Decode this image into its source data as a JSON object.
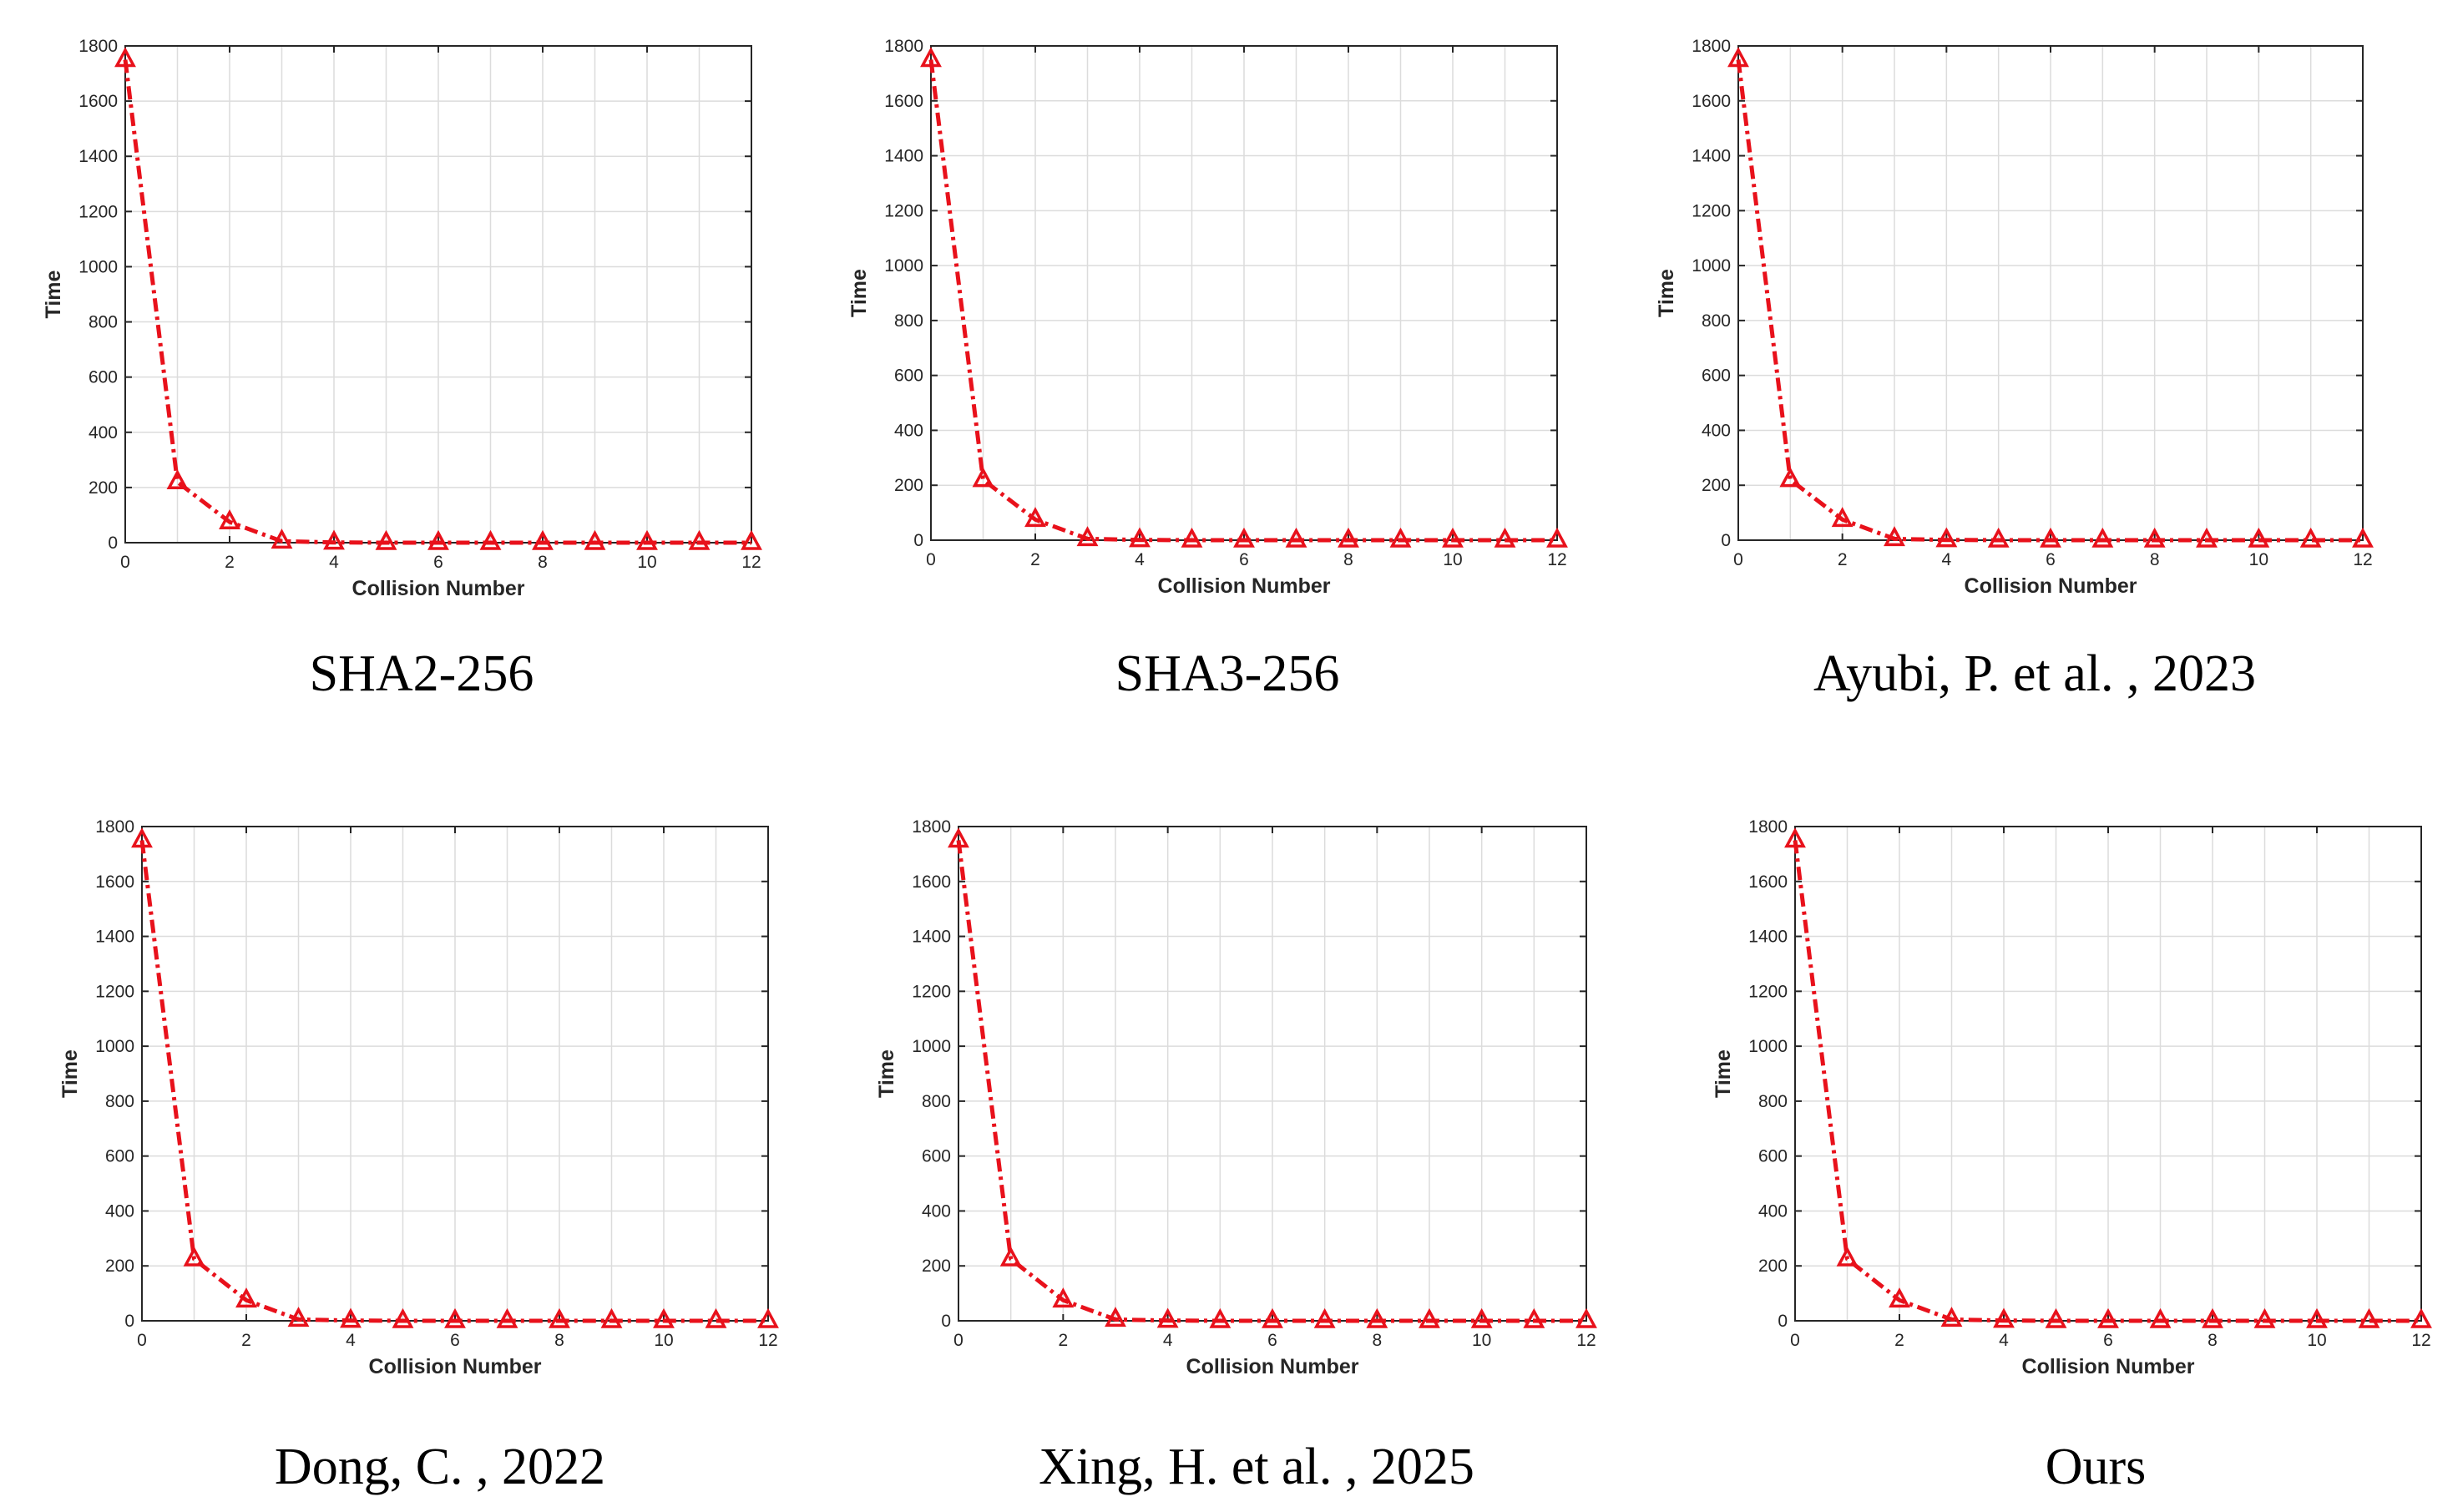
{
  "colors": {
    "series": "#e8111b",
    "grid": "#dcdcdc",
    "axis": "#262626",
    "background": "#ffffff"
  },
  "shared": {
    "x_tick_labels": [
      "0",
      "2",
      "4",
      "6",
      "8",
      "10",
      "12"
    ],
    "y_tick_labels": [
      "0",
      "200",
      "400",
      "600",
      "800",
      "1000",
      "1200",
      "1400",
      "1600",
      "1800"
    ]
  },
  "chart_data": [
    {
      "type": "line",
      "caption": "SHA2-256",
      "xlabel": "Collision Number",
      "ylabel": "Time",
      "xlim": [
        0,
        12
      ],
      "ylim": [
        0,
        1800
      ],
      "grid": true,
      "marker": "triangle-open",
      "line_style": "dash-dot",
      "x": [
        0,
        1,
        2,
        3,
        4,
        5,
        6,
        7,
        8,
        9,
        10,
        11,
        12
      ],
      "values": [
        1750,
        220,
        75,
        5,
        1,
        0,
        0,
        0,
        0,
        0,
        0,
        0,
        0
      ]
    },
    {
      "type": "line",
      "caption": "SHA3-256",
      "xlabel": "Collision Number",
      "ylabel": "Time",
      "xlim": [
        0,
        12
      ],
      "ylim": [
        0,
        1800
      ],
      "grid": true,
      "marker": "triangle-open",
      "line_style": "dash-dot",
      "x": [
        0,
        1,
        2,
        3,
        4,
        5,
        6,
        7,
        8,
        9,
        10,
        11,
        12
      ],
      "values": [
        1750,
        220,
        75,
        5,
        1,
        0,
        0,
        0,
        0,
        0,
        0,
        0,
        0
      ]
    },
    {
      "type": "line",
      "caption": "Ayubi, P. et al. , 2023",
      "xlabel": "Collision Number",
      "ylabel": "Time",
      "xlim": [
        0,
        12
      ],
      "ylim": [
        0,
        1800
      ],
      "grid": true,
      "marker": "triangle-open",
      "line_style": "dash-dot",
      "x": [
        0,
        1,
        2,
        3,
        4,
        5,
        6,
        7,
        8,
        9,
        10,
        11,
        12
      ],
      "values": [
        1750,
        220,
        75,
        5,
        1,
        0,
        0,
        0,
        0,
        0,
        0,
        0,
        0
      ]
    },
    {
      "type": "line",
      "caption": "Dong, C. , 2022",
      "xlabel": "Collision Number",
      "ylabel": "Time",
      "xlim": [
        0,
        12
      ],
      "ylim": [
        0,
        1800
      ],
      "grid": true,
      "marker": "triangle-open",
      "line_style": "dash-dot",
      "x": [
        0,
        1,
        2,
        3,
        4,
        5,
        6,
        7,
        8,
        9,
        10,
        11,
        12
      ],
      "values": [
        1750,
        225,
        75,
        5,
        1,
        0,
        0,
        0,
        0,
        0,
        0,
        0,
        0
      ]
    },
    {
      "type": "line",
      "caption": "Xing, H. et al. , 2025",
      "xlabel": "Collision Number",
      "ylabel": "Time",
      "xlim": [
        0,
        12
      ],
      "ylim": [
        0,
        1800
      ],
      "grid": true,
      "marker": "triangle-open",
      "line_style": "dash-dot",
      "x": [
        0,
        1,
        2,
        3,
        4,
        5,
        6,
        7,
        8,
        9,
        10,
        11,
        12
      ],
      "values": [
        1750,
        225,
        75,
        5,
        1,
        0,
        0,
        0,
        0,
        0,
        0,
        0,
        0
      ]
    },
    {
      "type": "line",
      "caption": "Ours",
      "xlabel": "Collision Number",
      "ylabel": "Time",
      "xlim": [
        0,
        12
      ],
      "ylim": [
        0,
        1800
      ],
      "grid": true,
      "marker": "triangle-open",
      "line_style": "dash-dot",
      "x": [
        0,
        1,
        2,
        3,
        4,
        5,
        6,
        7,
        8,
        9,
        10,
        11,
        12
      ],
      "values": [
        1750,
        225,
        75,
        5,
        1,
        0,
        0,
        0,
        0,
        0,
        0,
        0,
        0
      ]
    }
  ]
}
